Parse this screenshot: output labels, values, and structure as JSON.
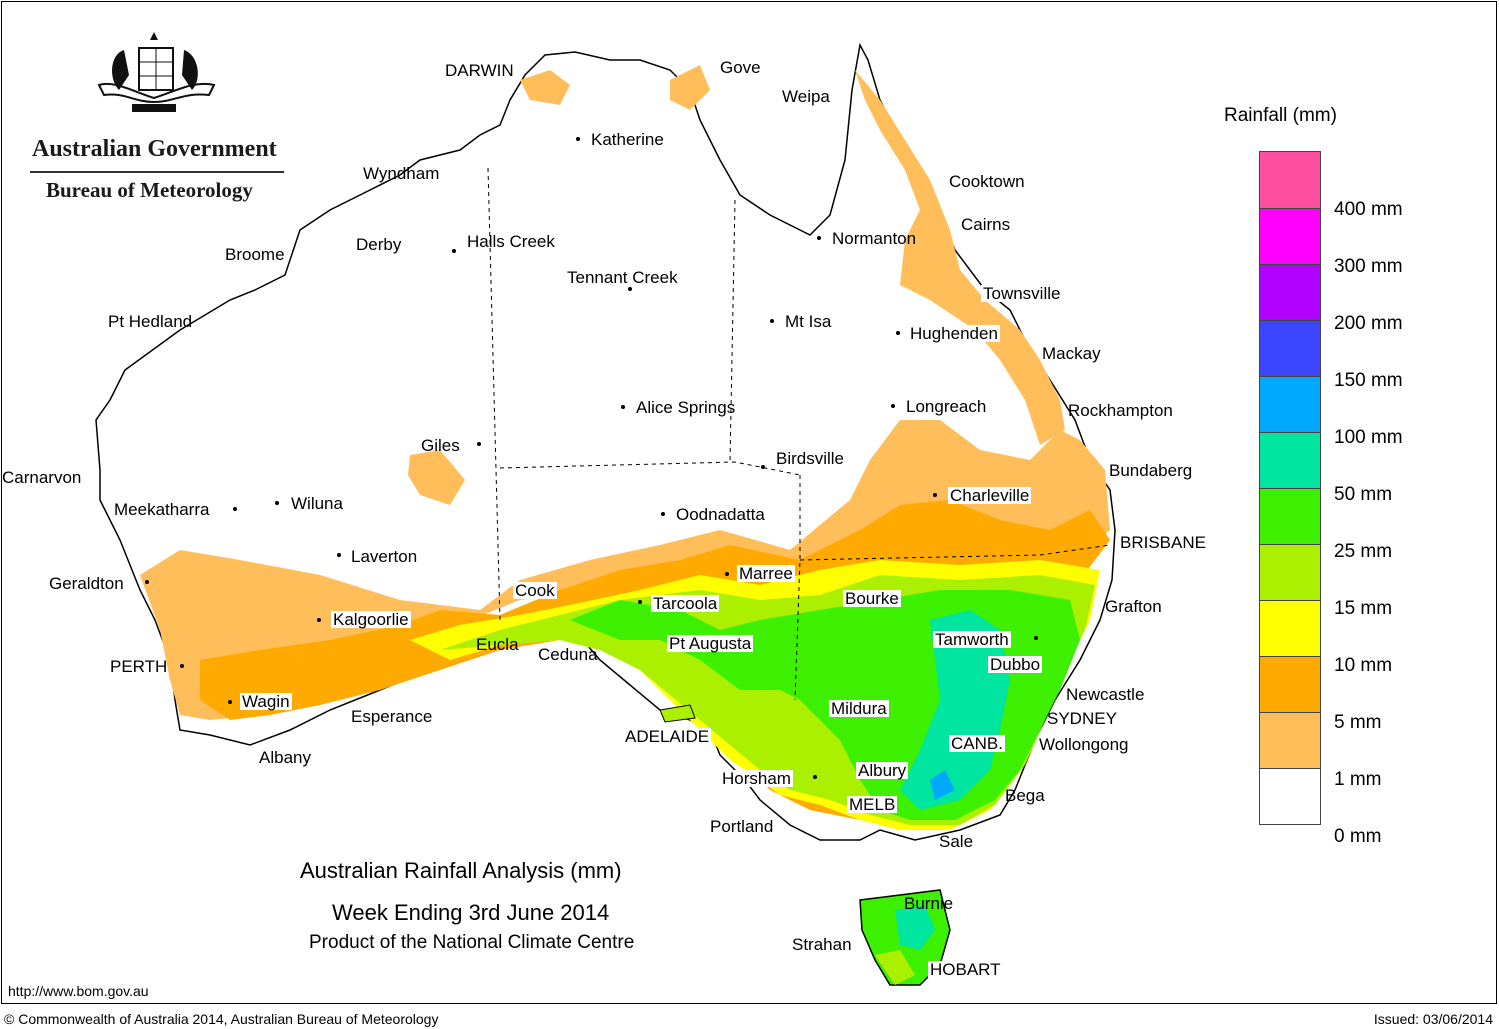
{
  "logo": {
    "government": "Australian Government",
    "bureau": "Bureau of Meteorology"
  },
  "title": {
    "line1": "Australian Rainfall Analysis (mm)",
    "line2": "Week Ending 3rd June 2014",
    "line3": "Product of the National Climate Centre"
  },
  "legend": {
    "title": "Rainfall (mm)",
    "bands": [
      {
        "color": "#ff4fa0"
      },
      {
        "color": "#ff00ff"
      },
      {
        "color": "#b000ff"
      },
      {
        "color": "#3c46ff"
      },
      {
        "color": "#00a8ff"
      },
      {
        "color": "#00e5a0"
      },
      {
        "color": "#3cf000"
      },
      {
        "color": "#aaf000"
      },
      {
        "color": "#ffff00"
      },
      {
        "color": "#ffaa00"
      },
      {
        "color": "#ffbe5a"
      },
      {
        "color": "#ffffff"
      }
    ],
    "labels": [
      "400 mm",
      "300 mm",
      "200 mm",
      "150 mm",
      "100 mm",
      "50 mm",
      "25 mm",
      "15 mm",
      "10 mm",
      "5 mm",
      "1 mm",
      "0 mm"
    ]
  },
  "places": {
    "darwin": "DARWIN",
    "gove": "Gove",
    "weipa": "Weipa",
    "katherine": "Katherine",
    "wyndham": "Wyndham",
    "cooktown": "Cooktown",
    "cairns": "Cairns",
    "derby": "Derby",
    "halls_creek": "Halls Creek",
    "broome": "Broome",
    "normanton": "Normanton",
    "tennant_creek": "Tennant Creek",
    "townsville": "Townsville",
    "pt_hedland": "Pt Hedland",
    "mt_isa": "Mt Isa",
    "hughenden": "Hughenden",
    "mackay": "Mackay",
    "alice_springs": "Alice Springs",
    "longreach": "Longreach",
    "rockhampton": "Rockhampton",
    "giles": "Giles",
    "birdsville": "Birdsville",
    "carnarvon": "Carnarvon",
    "bundaberg": "Bundaberg",
    "charleville": "Charleville",
    "meekatharra": "Meekatharra",
    "wiluna": "Wiluna",
    "oodnadatta": "Oodnadatta",
    "brisbane": "BRISBANE",
    "laverton": "Laverton",
    "marree": "Marree",
    "geraldton": "Geraldton",
    "cook": "Cook",
    "tarcoola": "Tarcoola",
    "bourke": "Bourke",
    "grafton": "Grafton",
    "kalgoorlie": "Kalgoorlie",
    "tamworth": "Tamworth",
    "pt_augusta": "Pt Augusta",
    "eucla": "Eucla",
    "ceduna": "Ceduna",
    "dubbo": "Dubbo",
    "perth": "PERTH",
    "newcastle": "Newcastle",
    "wagin": "Wagin",
    "mildura": "Mildura",
    "sydney": "SYDNEY",
    "esperance": "Esperance",
    "adelaide": "ADELAIDE",
    "canb": "CANB.",
    "wollongong": "Wollongong",
    "albany": "Albany",
    "horsham": "Horsham",
    "albury": "Albury",
    "bega": "Bega",
    "melb": "MELB",
    "portland": "Portland",
    "sale": "Sale",
    "burnie": "Burnie",
    "strahan": "Strahan",
    "hobart": "HOBART"
  },
  "footer": {
    "url": "http://www.bom.gov.au",
    "copyright": "© Commonwealth of Australia 2014, Australian Bureau of Meteorology",
    "issued": "Issued: 03/06/2014"
  }
}
